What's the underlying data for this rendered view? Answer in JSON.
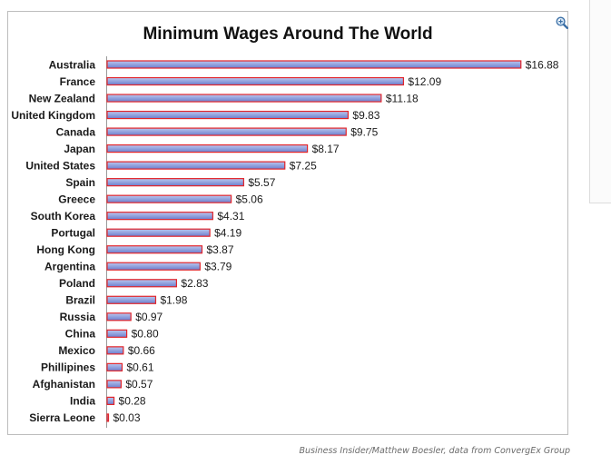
{
  "source": "Business Insider/Matthew Boesler, data from ConvergEx Group",
  "icons": {
    "zoom": "zoom-in-icon"
  },
  "colors": {
    "bar_fill_light": "#b9c7ef",
    "bar_fill_mid": "#8f9fdc",
    "bar_fill_dark": "#6b7fce",
    "bar_border": "#e2252b",
    "frame_border": "#bdbdbd"
  },
  "chart_data": {
    "type": "bar",
    "orientation": "horizontal",
    "title": "Minimum Wages Around The World",
    "xlabel": "",
    "ylabel": "",
    "grid": false,
    "legend": "none",
    "xlim": [
      0,
      17.5
    ],
    "categories": [
      "Australia",
      "France",
      "New Zealand",
      "United Kingdom",
      "Canada",
      "Japan",
      "United States",
      "Spain",
      "Greece",
      "South Korea",
      "Portugal",
      "Hong Kong",
      "Argentina",
      "Poland",
      "Brazil",
      "Russia",
      "China",
      "Mexico",
      "Phillipines",
      "Afghanistan",
      "India",
      "Sierra Leone"
    ],
    "values": [
      16.88,
      12.09,
      11.18,
      9.83,
      9.75,
      8.17,
      7.25,
      5.57,
      5.06,
      4.31,
      4.19,
      3.87,
      3.79,
      2.83,
      1.98,
      0.97,
      0.8,
      0.66,
      0.61,
      0.57,
      0.28,
      0.03
    ],
    "value_labels": [
      "$16.88",
      "$12.09",
      "$11.18",
      "$9.83",
      "$9.75",
      "$8.17",
      "$7.25",
      "$5.57",
      "$5.06",
      "$4.31",
      "$4.19",
      "$3.87",
      "$3.79",
      "$2.83",
      "$1.98",
      "$0.97",
      "$0.80",
      "$0.66",
      "$0.61",
      "$0.57",
      "$0.28",
      "$0.03"
    ]
  }
}
